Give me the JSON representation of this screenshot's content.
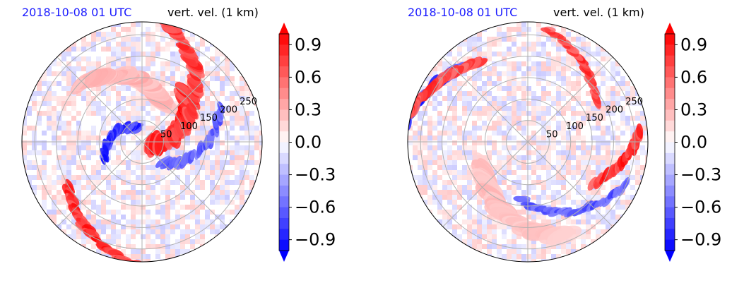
{
  "colors": {
    "title_left": "#1a1aff",
    "title_right": "#000000",
    "grid": "#b0b0b0",
    "positive": "#ff0000",
    "negative": "#0000ff",
    "neutral": "#ffffff"
  },
  "chart_data": [
    {
      "type": "heatmap",
      "projection": "polar",
      "title_left": "2018-10-08 01 UTC",
      "title_right": "vert. vel. (1 km)",
      "radial_ticks": [
        "50",
        "100",
        "150",
        "200",
        "250"
      ],
      "colorbar": {
        "ticks": [
          "0.9",
          "0.6",
          "0.3",
          "0.0",
          "−0.3",
          "−0.6",
          "−0.9"
        ],
        "range": [
          -1.0,
          1.0
        ],
        "extend": "both",
        "colormap": "bwr"
      },
      "grid": true
    },
    {
      "type": "heatmap",
      "projection": "polar",
      "title_left": "2018-10-08 01 UTC",
      "title_right": "vert. vel. (1 km)",
      "radial_ticks": [
        "50",
        "100",
        "150",
        "200",
        "250"
      ],
      "colorbar": {
        "ticks": [
          "0.9",
          "0.6",
          "0.3",
          "0.0",
          "−0.3",
          "−0.6",
          "−0.9"
        ],
        "range": [
          -1.0,
          1.0
        ],
        "extend": "both",
        "colormap": "bwr"
      },
      "grid": true
    }
  ]
}
